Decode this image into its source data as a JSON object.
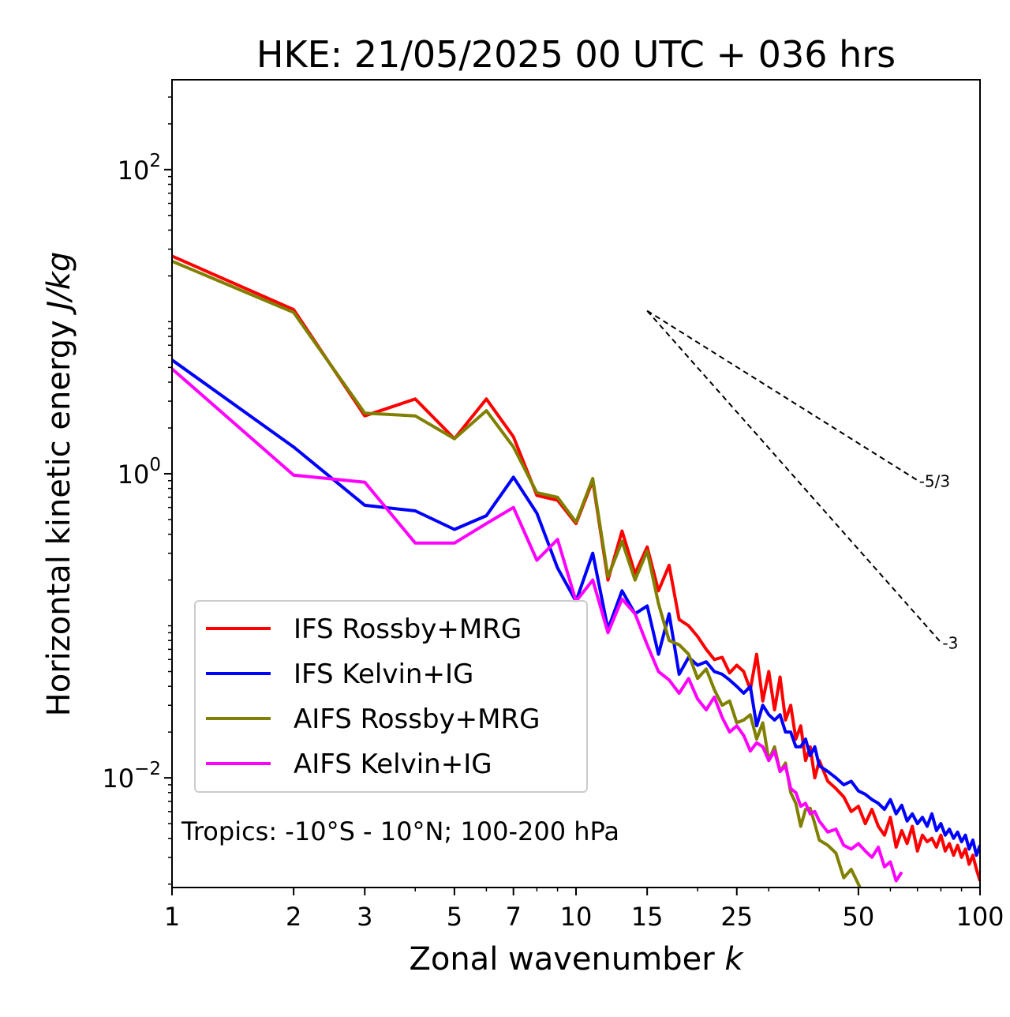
{
  "chart_data": {
    "type": "line",
    "title": "HKE: 21/05/2025 00 UTC + 036 hrs",
    "xlabel_text": "Zonal wavenumber ",
    "xlabel_var": "k",
    "ylabel_text": "Horizontal kinetic energy ",
    "ylabel_unit": "J/kg",
    "x_scale": "log",
    "y_scale": "log",
    "xlim": [
      1,
      100
    ],
    "ylim": [
      0.0019,
      390
    ],
    "x_ticks": [
      1,
      2,
      3,
      5,
      7,
      10,
      15,
      25,
      50,
      100
    ],
    "x_tick_labels": [
      "1",
      "2",
      "3",
      "5",
      "7",
      "10",
      "15",
      "25",
      "50",
      "100"
    ],
    "y_ticks": [
      {
        "value": 100,
        "base": "10",
        "exp": "2"
      },
      {
        "value": 1,
        "base": "10",
        "exp": "0"
      },
      {
        "value": 0.01,
        "base": "10",
        "exp": "−2"
      }
    ],
    "legend_position": "lower-left",
    "annotation": "Tropics: -10°S - 10°N; 100-200 hPa",
    "reference_lines": [
      {
        "label": "-5/3",
        "slope": -1.6667,
        "x_start": 15,
        "y_start": 11.8,
        "x_end": 70
      },
      {
        "label": "-3",
        "slope": -3,
        "x_start": 15,
        "y_start": 11.8,
        "x_end": 80
      }
    ],
    "series": [
      {
        "name": "IFS Rossby+MRG",
        "color": "#ff0000",
        "x": [
          1,
          2,
          3,
          4,
          5,
          6,
          7,
          8,
          9,
          10,
          11,
          12,
          13,
          14,
          15,
          16,
          17,
          18,
          19,
          20,
          21,
          22,
          23,
          24,
          25,
          26,
          27,
          28,
          29,
          30,
          31,
          32,
          33,
          34,
          35,
          36,
          37,
          38,
          39,
          40,
          42,
          44,
          46,
          48,
          50,
          52,
          54,
          56,
          58,
          60,
          62,
          64,
          66,
          68,
          70,
          72,
          74,
          76,
          78,
          80,
          82,
          84,
          86,
          88,
          90,
          92,
          94,
          96,
          98,
          100
        ],
        "y": [
          27,
          12,
          2.4,
          3.1,
          1.7,
          3.1,
          1.75,
          0.72,
          0.67,
          0.47,
          0.9,
          0.2,
          0.42,
          0.22,
          0.33,
          0.17,
          0.25,
          0.11,
          0.1,
          0.085,
          0.07,
          0.06,
          0.062,
          0.049,
          0.055,
          0.05,
          0.038,
          0.065,
          0.032,
          0.05,
          0.028,
          0.046,
          0.024,
          0.03,
          0.018,
          0.022,
          0.013,
          0.016,
          0.01,
          0.013,
          0.0095,
          0.0085,
          0.0075,
          0.006,
          0.0065,
          0.005,
          0.0062,
          0.0048,
          0.0042,
          0.0055,
          0.0035,
          0.0045,
          0.0037,
          0.0048,
          0.0033,
          0.0042,
          0.0038,
          0.004,
          0.0035,
          0.0042,
          0.0033,
          0.0037,
          0.0031,
          0.0036,
          0.003,
          0.0034,
          0.0027,
          0.0031,
          0.0025,
          0.0021
        ]
      },
      {
        "name": "IFS Kelvin+IG",
        "color": "#0000ff",
        "x": [
          1,
          2,
          3,
          4,
          5,
          6,
          7,
          8,
          9,
          10,
          11,
          12,
          13,
          14,
          15,
          16,
          17,
          18,
          19,
          20,
          21,
          22,
          23,
          24,
          25,
          26,
          27,
          28,
          29,
          30,
          31,
          32,
          33,
          34,
          35,
          36,
          37,
          38,
          39,
          40,
          42,
          44,
          46,
          48,
          50,
          52,
          54,
          56,
          58,
          60,
          62,
          64,
          66,
          68,
          70,
          72,
          74,
          76,
          78,
          80,
          82,
          84,
          86,
          88,
          90,
          92,
          94,
          96,
          98,
          100
        ],
        "y": [
          5.6,
          1.5,
          0.62,
          0.57,
          0.43,
          0.53,
          0.95,
          0.55,
          0.24,
          0.145,
          0.3,
          0.095,
          0.17,
          0.12,
          0.135,
          0.065,
          0.12,
          0.048,
          0.062,
          0.055,
          0.058,
          0.05,
          0.048,
          0.044,
          0.04,
          0.036,
          0.04,
          0.022,
          0.03,
          0.026,
          0.024,
          0.026,
          0.02,
          0.02,
          0.016,
          0.016,
          0.018,
          0.014,
          0.016,
          0.012,
          0.011,
          0.01,
          0.009,
          0.0095,
          0.0082,
          0.0078,
          0.0072,
          0.0068,
          0.0062,
          0.0072,
          0.0058,
          0.0066,
          0.0052,
          0.0058,
          0.005,
          0.0055,
          0.0048,
          0.0058,
          0.0045,
          0.005,
          0.0042,
          0.0046,
          0.004,
          0.0044,
          0.0038,
          0.0042,
          0.0034,
          0.0039,
          0.0031,
          0.0036
        ]
      },
      {
        "name": "AIFS Rossby+MRG",
        "color": "#808000",
        "x": [
          1,
          2,
          3,
          4,
          5,
          6,
          7,
          8,
          9,
          10,
          11,
          12,
          13,
          14,
          15,
          16,
          17,
          18,
          19,
          20,
          21,
          22,
          23,
          24,
          25,
          26,
          27,
          28,
          29,
          30,
          31,
          32,
          33,
          34,
          35,
          36,
          37,
          38,
          39,
          40,
          42,
          44,
          46,
          48,
          50,
          52,
          54,
          56,
          58
        ],
        "y": [
          25,
          11.5,
          2.5,
          2.4,
          1.7,
          2.6,
          1.5,
          0.75,
          0.7,
          0.48,
          0.93,
          0.21,
          0.36,
          0.2,
          0.31,
          0.14,
          0.08,
          0.075,
          0.065,
          0.045,
          0.052,
          0.038,
          0.03,
          0.032,
          0.023,
          0.024,
          0.026,
          0.018,
          0.023,
          0.013,
          0.016,
          0.011,
          0.0125,
          0.008,
          0.0068,
          0.0048,
          0.0062,
          0.0063,
          0.005,
          0.0039,
          0.0036,
          0.0032,
          0.0022,
          0.0025,
          0.002,
          0.0016,
          0.0014,
          0.0012,
          0.0011
        ]
      },
      {
        "name": "AIFS Kelvin+IG",
        "color": "#ff00ff",
        "x": [
          1,
          2,
          3,
          4,
          5,
          6,
          7,
          8,
          9,
          10,
          11,
          12,
          13,
          14,
          15,
          16,
          17,
          18,
          19,
          20,
          21,
          22,
          23,
          24,
          25,
          26,
          27,
          28,
          29,
          30,
          31,
          32,
          33,
          34,
          35,
          36,
          37,
          38,
          39,
          40,
          42,
          44,
          46,
          48,
          50,
          52,
          54,
          56,
          58,
          60,
          62,
          64
        ],
        "y": [
          4.9,
          0.98,
          0.88,
          0.35,
          0.35,
          0.47,
          0.6,
          0.27,
          0.37,
          0.145,
          0.2,
          0.09,
          0.15,
          0.12,
          0.075,
          0.05,
          0.044,
          0.036,
          0.045,
          0.033,
          0.028,
          0.034,
          0.025,
          0.02,
          0.022,
          0.019,
          0.015,
          0.017,
          0.016,
          0.013,
          0.015,
          0.011,
          0.012,
          0.0085,
          0.008,
          0.0065,
          0.0068,
          0.0058,
          0.006,
          0.0052,
          0.0044,
          0.0046,
          0.0036,
          0.0034,
          0.0037,
          0.0033,
          0.003,
          0.0035,
          0.0026,
          0.0028,
          0.0021,
          0.0024
        ]
      }
    ]
  }
}
